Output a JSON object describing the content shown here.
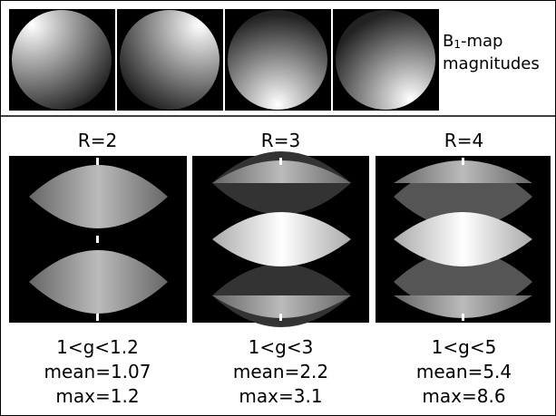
{
  "top_label": {
    "prefix": "B",
    "subscript": "1",
    "suffix": "-map",
    "line2": "magnitudes"
  },
  "panels": [
    {
      "label": "R=2",
      "stats": [
        "1<g<1.2",
        "mean=1.07",
        "max=1.2"
      ]
    },
    {
      "label": "R=3",
      "stats": [
        "1<g<3",
        "mean=2.2",
        "max=3.1"
      ]
    },
    {
      "label": "R=4",
      "stats": [
        "1<g<5",
        "mean=5.4",
        "max=8.6"
      ]
    }
  ]
}
